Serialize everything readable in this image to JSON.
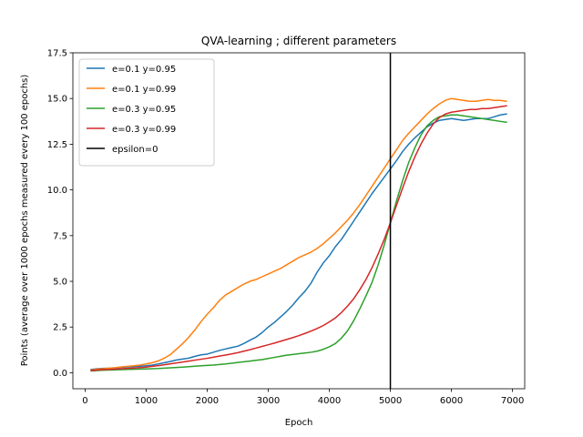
{
  "chart_data": {
    "type": "line",
    "title": "QVA-learning ; different parameters",
    "xlabel": "Epoch",
    "ylabel": "Points (average over 1000 epochs measured every 100 epochs)",
    "xlim": [
      -200,
      7200
    ],
    "ylim": [
      -0.875,
      17.5
    ],
    "xticks": [
      0,
      1000,
      2000,
      3000,
      4000,
      5000,
      6000,
      7000
    ],
    "xtick_labels": [
      "0",
      "1000",
      "2000",
      "3000",
      "4000",
      "5000",
      "6000",
      "7000"
    ],
    "yticks": [
      0.0,
      2.5,
      5.0,
      7.5,
      10.0,
      12.5,
      15.0,
      17.5
    ],
    "ytick_labels": [
      "0.0",
      "2.5",
      "5.0",
      "7.5",
      "10.0",
      "12.5",
      "15.0",
      "17.5"
    ],
    "grid": false,
    "legend_position": "top-left",
    "x": [
      100,
      200,
      300,
      400,
      500,
      600,
      700,
      800,
      900,
      1000,
      1100,
      1200,
      1300,
      1400,
      1500,
      1600,
      1700,
      1800,
      1900,
      2000,
      2100,
      2200,
      2300,
      2400,
      2500,
      2600,
      2700,
      2800,
      2900,
      3000,
      3100,
      3200,
      3300,
      3400,
      3500,
      3600,
      3700,
      3800,
      3900,
      4000,
      4100,
      4200,
      4300,
      4400,
      4500,
      4600,
      4700,
      4800,
      4900,
      5000,
      5100,
      5200,
      5300,
      5400,
      5500,
      5600,
      5700,
      5800,
      5900,
      6000,
      6100,
      6200,
      6300,
      6400,
      6500,
      6600,
      6700,
      6800,
      6900
    ],
    "series": [
      {
        "name": "e=0.1 y=0.95",
        "color": "#1f77b4",
        "values": [
          0.18,
          0.22,
          0.24,
          0.25,
          0.27,
          0.3,
          0.32,
          0.34,
          0.36,
          0.38,
          0.42,
          0.48,
          0.55,
          0.62,
          0.7,
          0.75,
          0.8,
          0.9,
          0.98,
          1.02,
          1.12,
          1.22,
          1.3,
          1.38,
          1.45,
          1.6,
          1.78,
          1.95,
          2.2,
          2.5,
          2.75,
          3.05,
          3.35,
          3.7,
          4.1,
          4.45,
          4.9,
          5.5,
          6.0,
          6.4,
          6.9,
          7.3,
          7.8,
          8.3,
          8.8,
          9.3,
          9.8,
          10.25,
          10.7,
          11.15,
          11.6,
          12.1,
          12.5,
          12.85,
          13.15,
          13.45,
          13.65,
          13.8,
          13.85,
          13.9,
          13.85,
          13.8,
          13.85,
          13.9,
          13.9,
          13.9,
          14.0,
          14.1,
          14.15
        ]
      },
      {
        "name": "e=0.1 y=0.99",
        "color": "#ff7f0e",
        "values": [
          0.14,
          0.2,
          0.22,
          0.25,
          0.28,
          0.32,
          0.35,
          0.38,
          0.42,
          0.48,
          0.55,
          0.65,
          0.8,
          1.0,
          1.3,
          1.6,
          1.95,
          2.35,
          2.8,
          3.2,
          3.55,
          3.95,
          4.25,
          4.45,
          4.65,
          4.85,
          5.0,
          5.1,
          5.25,
          5.4,
          5.55,
          5.7,
          5.9,
          6.1,
          6.3,
          6.45,
          6.6,
          6.8,
          7.05,
          7.35,
          7.65,
          8.0,
          8.35,
          8.75,
          9.2,
          9.7,
          10.2,
          10.7,
          11.2,
          11.7,
          12.2,
          12.7,
          13.1,
          13.45,
          13.8,
          14.15,
          14.45,
          14.7,
          14.9,
          15.0,
          14.95,
          14.9,
          14.85,
          14.85,
          14.9,
          14.95,
          14.9,
          14.9,
          14.85
        ]
      },
      {
        "name": "e=0.3 y=0.95",
        "color": "#2ca02c",
        "values": [
          0.1,
          0.12,
          0.14,
          0.15,
          0.16,
          0.17,
          0.18,
          0.19,
          0.2,
          0.21,
          0.22,
          0.23,
          0.25,
          0.27,
          0.29,
          0.31,
          0.33,
          0.36,
          0.38,
          0.4,
          0.42,
          0.45,
          0.48,
          0.52,
          0.56,
          0.6,
          0.64,
          0.68,
          0.72,
          0.78,
          0.84,
          0.9,
          0.96,
          1.0,
          1.04,
          1.08,
          1.12,
          1.18,
          1.28,
          1.42,
          1.6,
          1.9,
          2.3,
          2.85,
          3.5,
          4.2,
          4.95,
          5.9,
          7.0,
          8.2,
          9.4,
          10.5,
          11.5,
          12.3,
          13.0,
          13.5,
          13.8,
          14.0,
          14.05,
          14.1,
          14.1,
          14.05,
          14.0,
          13.95,
          13.9,
          13.85,
          13.8,
          13.75,
          13.7
        ]
      },
      {
        "name": "e=0.3 y=0.99",
        "color": "#d62728",
        "values": [
          0.12,
          0.15,
          0.17,
          0.18,
          0.2,
          0.22,
          0.24,
          0.26,
          0.28,
          0.31,
          0.35,
          0.39,
          0.44,
          0.49,
          0.54,
          0.59,
          0.64,
          0.69,
          0.74,
          0.79,
          0.85,
          0.91,
          0.97,
          1.03,
          1.1,
          1.18,
          1.26,
          1.35,
          1.44,
          1.53,
          1.62,
          1.72,
          1.82,
          1.92,
          2.03,
          2.15,
          2.28,
          2.42,
          2.58,
          2.78,
          3.0,
          3.3,
          3.65,
          4.05,
          4.55,
          5.1,
          5.75,
          6.5,
          7.3,
          8.2,
          9.15,
          10.1,
          11.0,
          11.8,
          12.5,
          13.1,
          13.6,
          13.95,
          14.15,
          14.25,
          14.3,
          14.35,
          14.4,
          14.4,
          14.45,
          14.45,
          14.5,
          14.55,
          14.6
        ]
      }
    ],
    "vline": {
      "name": "epsilon=0",
      "x": 5000,
      "color": "#000000"
    }
  }
}
